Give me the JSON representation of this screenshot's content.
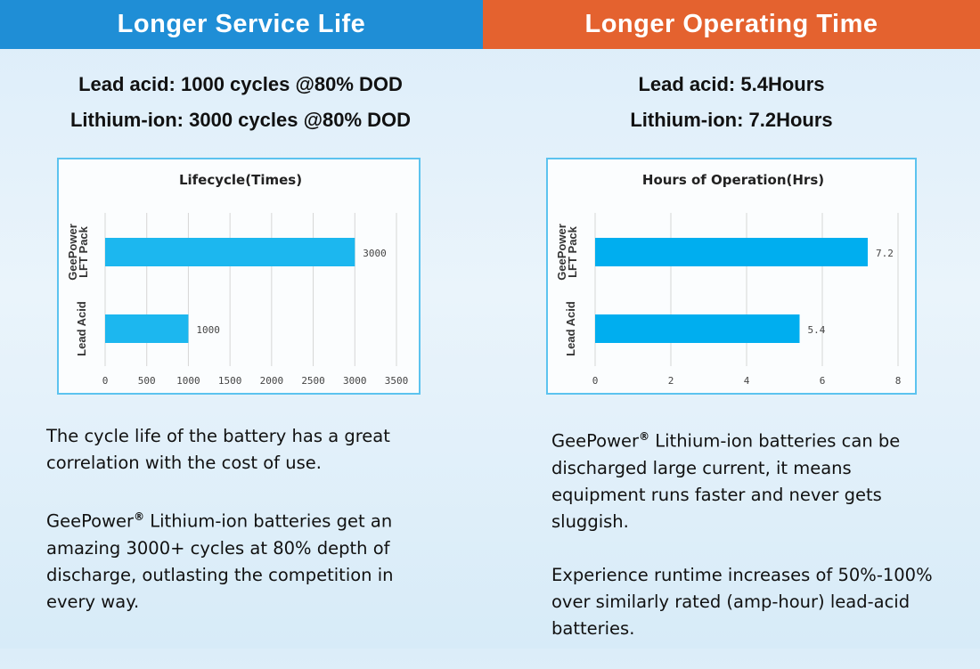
{
  "left": {
    "header": "Longer Service Life",
    "stats": [
      "Lead acid: 1000 cycles @80% DOD",
      "Lithium-ion: 3000 cycles @80% DOD"
    ],
    "para1": "The cycle life of the battery has a great correlation with the cost of use.",
    "para2_brand": "GeePower",
    "para2_mark": "®",
    "para2": " Lithium-ion batteries get an amazing 3000+ cycles at 80% depth of discharge, outlasting the competition in every way."
  },
  "right": {
    "header": "Longer Operating Time",
    "stats": [
      "Lead acid: 5.4Hours",
      "Lithium-ion: 7.2Hours"
    ],
    "para1_brand": "GeePower",
    "para1_mark": "®",
    "para1": " Lithium-ion batteries can be discharged large current, it means equipment runs faster and never gets sluggish.",
    "para2": "Experience runtime increases of 50%-100% over similarly rated (amp-hour) lead-acid batteries."
  },
  "chart_data": [
    {
      "type": "bar",
      "orientation": "horizontal",
      "title": "Lifecycle(Times)",
      "categories": [
        "GeePower LFT Pack",
        "Lead Acid"
      ],
      "values": [
        3000,
        1000
      ],
      "data_labels": [
        "3000",
        "1000"
      ],
      "xlim": [
        0,
        3500
      ],
      "ticks": [
        0,
        500,
        1000,
        1500,
        2000,
        2500,
        3000,
        3500
      ],
      "grid": true,
      "color": "#1cb7ef"
    },
    {
      "type": "bar",
      "orientation": "horizontal",
      "title": "Hours of Operation(Hrs)",
      "categories": [
        "GeePower LFT Pack",
        "Lead Acid"
      ],
      "values": [
        7.2,
        5.4
      ],
      "data_labels": [
        "7.2",
        "5.4"
      ],
      "xlim": [
        0,
        8
      ],
      "ticks": [
        0,
        2,
        4,
        6,
        8
      ],
      "grid": true,
      "color": "#00aeef"
    }
  ]
}
